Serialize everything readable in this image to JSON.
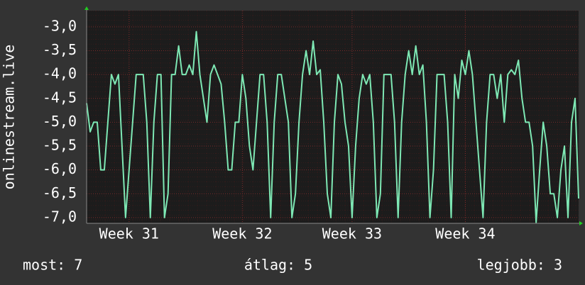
{
  "chart_data": {
    "type": "line",
    "y_label": "onlinestream.live",
    "values": [
      -4.6,
      -5.2,
      -5.0,
      -5.0,
      -6.0,
      -6.0,
      -5.0,
      -4.0,
      -4.2,
      -4.0,
      -5.5,
      -7.0,
      -6.0,
      -5.0,
      -4.0,
      -4.0,
      -4.0,
      -5.0,
      -7.0,
      -5.0,
      -4.0,
      -4.0,
      -7.0,
      -6.5,
      -4.0,
      -4.0,
      -3.4,
      -4.0,
      -4.0,
      -3.8,
      -4.0,
      -3.1,
      -4.0,
      -4.5,
      -5.0,
      -4.0,
      -3.8,
      -4.0,
      -4.2,
      -5.0,
      -6.0,
      -6.0,
      -5.0,
      -5.0,
      -4.0,
      -4.5,
      -5.5,
      -6.0,
      -5.0,
      -4.0,
      -4.0,
      -5.0,
      -7.0,
      -5.0,
      -4.0,
      -4.0,
      -4.5,
      -5.0,
      -7.0,
      -6.5,
      -5.0,
      -4.0,
      -3.5,
      -4.0,
      -3.3,
      -4.0,
      -3.9,
      -5.0,
      -6.5,
      -7.0,
      -5.0,
      -4.0,
      -4.2,
      -5.0,
      -5.5,
      -7.0,
      -5.5,
      -4.5,
      -4.0,
      -4.2,
      -4.0,
      -5.0,
      -7.0,
      -6.5,
      -4.0,
      -4.0,
      -4.0,
      -5.0,
      -7.0,
      -5.0,
      -4.0,
      -3.5,
      -4.0,
      -3.4,
      -4.0,
      -3.8,
      -5.0,
      -7.0,
      -6.0,
      -4.0,
      -4.0,
      -4.0,
      -5.0,
      -7.0,
      -4.0,
      -4.5,
      -3.7,
      -4.0,
      -3.5,
      -4.0,
      -5.0,
      -6.0,
      -7.0,
      -5.0,
      -4.0,
      -4.0,
      -4.5,
      -4.0,
      -5.0,
      -4.0,
      -3.9,
      -4.0,
      -3.7,
      -4.5,
      -5.0,
      -5.0,
      -5.5,
      -7.1,
      -6.0,
      -5.0,
      -5.5,
      -6.5,
      -6.5,
      -7.0,
      -6.0,
      -5.5,
      -7.0,
      -5.0,
      -4.5,
      -6.6
    ],
    "color": "#7ee8b4",
    "xlim": [
      0,
      139
    ],
    "xticks": [
      {
        "value": 12,
        "label": "Week 31"
      },
      {
        "value": 44,
        "label": "Week 32"
      },
      {
        "value": 75,
        "label": "Week 33"
      },
      {
        "value": 107,
        "label": "Week 34"
      }
    ],
    "ylim": [
      -7.12,
      -2.66
    ],
    "yticks": [
      {
        "value": -3,
        "label": "-3,0"
      },
      {
        "value": -3.5,
        "label": "-3,5"
      },
      {
        "value": -4,
        "label": "-4,0"
      },
      {
        "value": -4.5,
        "label": "-4,5"
      },
      {
        "value": -5,
        "label": "-5,0"
      },
      {
        "value": -5.5,
        "label": "-5,5"
      },
      {
        "value": -6,
        "label": "-6,0"
      },
      {
        "value": -6.5,
        "label": "-6,5"
      },
      {
        "value": -7,
        "label": "-7,0"
      }
    ],
    "grid": true,
    "stats": [
      "most: 7",
      "átlag: 5",
      "legjobb: 3"
    ]
  }
}
